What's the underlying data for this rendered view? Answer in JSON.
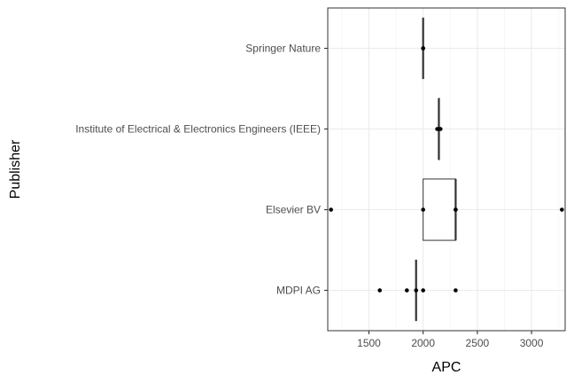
{
  "chart_data": {
    "type": "boxplot",
    "orientation": "horizontal",
    "xlabel": "APC",
    "ylabel": "Publisher",
    "xlim": [
      1120,
      3310
    ],
    "x_ticks": [
      1500,
      2000,
      2500,
      3000
    ],
    "categories": [
      "Springer Nature",
      "Institute of Electrical & Electronics Engineers (IEEE)",
      "Elsevier BV",
      "MDPI AG"
    ],
    "grid": true,
    "theme_colors": {
      "panel_border": "#333333",
      "grid_major": "#ebebeb",
      "grid_minor": "#f5f5f5",
      "points": "#000000"
    },
    "boxes": [
      {
        "category": "Springer Nature",
        "q1": 2000,
        "median": 2000,
        "q3": 2000,
        "whisker_low": 2000,
        "whisker_high": 2000,
        "points": [
          2000,
          2000
        ]
      },
      {
        "category": "Institute of Electrical & Electronics Engineers (IEEE)",
        "q1": 2145,
        "median": 2145,
        "q3": 2150,
        "whisker_low": 2145,
        "whisker_high": 2150,
        "points": [
          2130,
          2145,
          2160
        ]
      },
      {
        "category": "Elsevier BV",
        "q1": 2000,
        "median": 2300,
        "q3": 2300,
        "whisker_low": 2000,
        "whisker_high": 2300,
        "points": [
          1150,
          2000,
          2300,
          2300,
          3280
        ]
      },
      {
        "category": "MDPI AG",
        "q1": 1935,
        "median": 1935,
        "q3": 1935,
        "whisker_low": 1935,
        "whisker_high": 1935,
        "points": [
          1600,
          1850,
          1935,
          2000,
          2300
        ]
      }
    ]
  }
}
